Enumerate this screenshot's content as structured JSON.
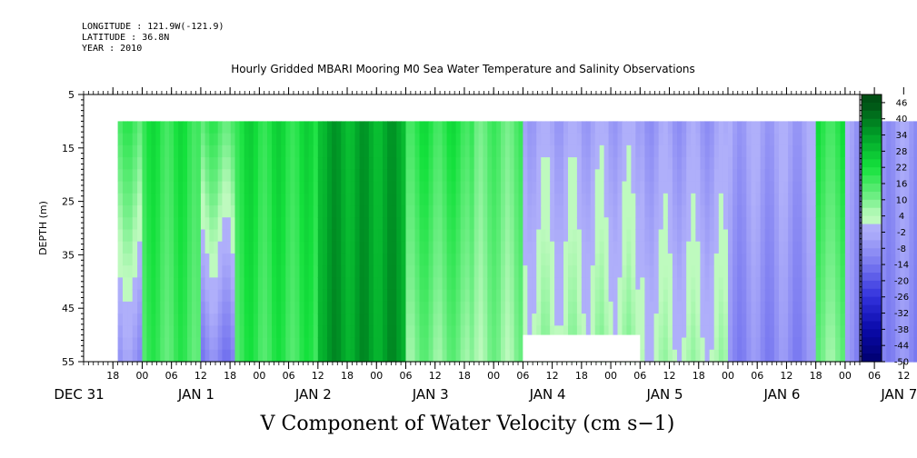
{
  "header": {
    "longitude": "LONGITUDE : 121.9W(-121.9)",
    "latitude": "LATITUDE : 36.8N",
    "year": "YEAR : 2010"
  },
  "chart_data": {
    "type": "heatmap",
    "title": "Hourly Gridded MBARI Mooring M0 Sea Water Temperature and Salinity Observations",
    "xlabel": "V Component of Water Velocity (cm s−1)",
    "ylabel": "DEPTH (m)",
    "y_ticks": [
      "5",
      "15",
      "25",
      "35",
      "45",
      "55"
    ],
    "y_range": [
      5,
      55
    ],
    "y_inverted": true,
    "x_range_hours": [
      "2009-12-31 12:00",
      "2010-01-07 15:00"
    ],
    "x_hour_ticks": [
      "18",
      "00",
      "06",
      "12",
      "18",
      "00",
      "06",
      "12",
      "18",
      "00",
      "06",
      "12",
      "18",
      "00",
      "06",
      "12",
      "18",
      "00",
      "06",
      "12",
      "18",
      "00",
      "06",
      "12",
      "18",
      "00",
      "06",
      "12",
      "18",
      "00",
      "06",
      "12"
    ],
    "x_day_labels": [
      "DEC 31",
      "JAN  1",
      "JAN  2",
      "JAN  3",
      "JAN  4",
      "JAN  5",
      "JAN  6",
      "JAN  7"
    ],
    "colorbar": {
      "labels": [
        "46",
        "40",
        "34",
        "28",
        "22",
        "16",
        "10",
        "4",
        "-2",
        "-8",
        "-14",
        "-20",
        "-26",
        "-32",
        "-38",
        "-44",
        "-50"
      ],
      "min": -50,
      "max": 49,
      "step": 3,
      "negative_color": "#0000a0",
      "positive_color": "#004a10"
    },
    "data_extent": {
      "start": "2009-12-31 19:00",
      "end": "2010-01-07 15:00",
      "depth_range": [
        10,
        55
      ]
    },
    "gaps": [
      {
        "start": "2010-01-04 06:00",
        "end": "2010-01-05 06:00",
        "depth_range": [
          50,
          55
        ]
      }
    ],
    "pattern_segments": [
      {
        "start": "2009-12-31 19:00",
        "end": "2010-01-01 00:00",
        "surface": 16,
        "bottom": -8
      },
      {
        "start": "2010-01-01 00:00",
        "end": "2010-01-01 12:00",
        "surface": 20,
        "bottom": 16
      },
      {
        "start": "2010-01-01 12:00",
        "end": "2010-01-01 19:00",
        "surface": 16,
        "bottom": -12
      },
      {
        "start": "2010-01-01 19:00",
        "end": "2010-01-02 12:00",
        "surface": 22,
        "bottom": 18
      },
      {
        "start": "2010-01-02 12:00",
        "end": "2010-01-03 06:00",
        "surface": 32,
        "bottom": 34
      },
      {
        "start": "2010-01-03 06:00",
        "end": "2010-01-03 20:00",
        "surface": 20,
        "bottom": 10
      },
      {
        "start": "2010-01-03 20:00",
        "end": "2010-01-04 06:00",
        "surface": 14,
        "bottom": 8
      },
      {
        "start": "2010-01-04 06:00",
        "end": "2010-01-05 06:00",
        "surface": -4,
        "bottom": 6
      },
      {
        "start": "2010-01-05 06:00",
        "end": "2010-01-06 00:00",
        "surface": -6,
        "bottom": 4
      },
      {
        "start": "2010-01-06 00:00",
        "end": "2010-01-06 18:00",
        "surface": -4,
        "bottom": -10
      },
      {
        "start": "2010-01-06 18:00",
        "end": "2010-01-07 00:00",
        "surface": 20,
        "bottom": 10
      },
      {
        "start": "2010-01-07 00:00",
        "end": "2010-01-07 15:00",
        "surface": -6,
        "bottom": -10
      }
    ]
  }
}
